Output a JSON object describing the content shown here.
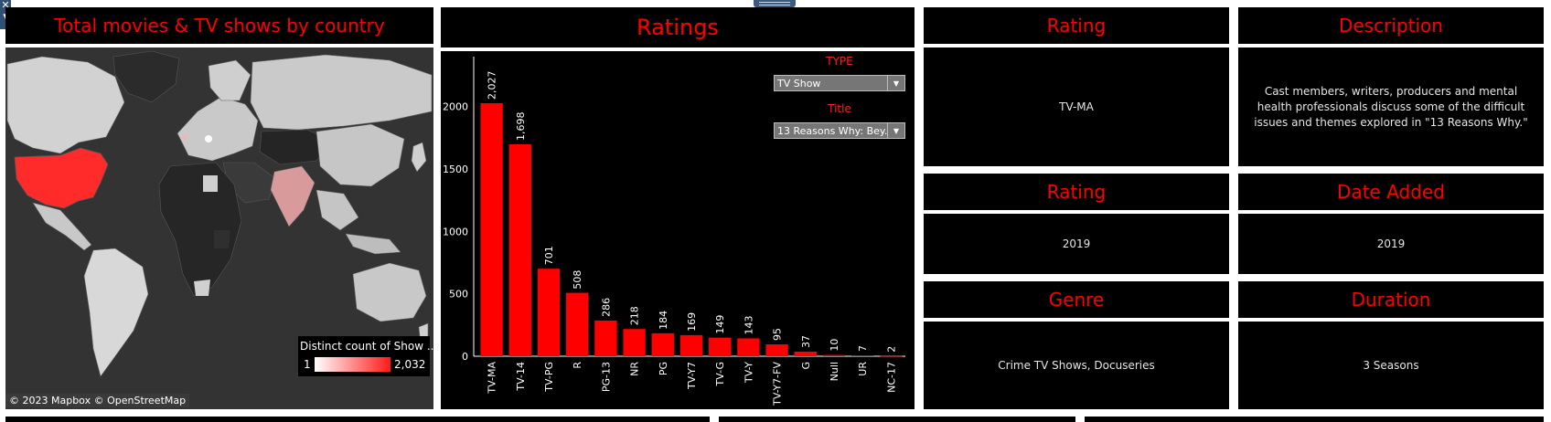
{
  "map_panel": {
    "title": "Total movies & TV shows by country",
    "legend_title": "Distinct count of Show ..",
    "legend_min": "1",
    "legend_max": "2,032",
    "credit": "© 2023 Mapbox © OpenStreetMap"
  },
  "ratings_panel": {
    "title": "Ratings",
    "filters": {
      "type_label": "TYPE",
      "type_value": "TV Show",
      "title_label": "Title",
      "title_value": "13 Reasons Why: Bey..."
    }
  },
  "info_cards": {
    "rating_title": "Rating",
    "rating_value": "TV-MA",
    "description_title": "Description",
    "description_value": "Cast members, writers, producers and mental health professionals discuss some of the difficult issues and themes explored in \"13 Reasons Why.\"",
    "rating2_title": "Rating",
    "rating2_value": "2019",
    "date_added_title": "Date Added",
    "date_added_value": "2019",
    "genre_title": "Genre",
    "genre_value": "Crime TV Shows, Docuseries",
    "duration_title": "Duration",
    "duration_value": "3 Seasons"
  },
  "chart_data": {
    "type": "bar",
    "title": "Ratings",
    "categories": [
      "TV-MA",
      "TV-14",
      "TV-PG",
      "R",
      "PG-13",
      "NR",
      "PG",
      "TV-Y7",
      "TV-G",
      "TV-Y",
      "TV-Y7-FV",
      "G",
      "Null",
      "UR",
      "NC-17"
    ],
    "values": [
      2027,
      1698,
      701,
      508,
      286,
      218,
      184,
      169,
      149,
      143,
      95,
      37,
      10,
      7,
      2
    ],
    "value_labels": [
      "2,027",
      "1,698",
      "701",
      "508",
      "286",
      "218",
      "184",
      "169",
      "149",
      "143",
      "95",
      "37",
      "10",
      "7",
      "2"
    ],
    "yticks": [
      "0",
      "500",
      "1000",
      "1500",
      "2000"
    ],
    "ylim": [
      0,
      2400
    ],
    "bar_color": "#ff0000",
    "grid": false
  },
  "colors": {
    "accent": "#ff0000",
    "panel_bg": "#000000",
    "map_land": "#2b2b2b",
    "map_high": "#ff2b2b"
  }
}
